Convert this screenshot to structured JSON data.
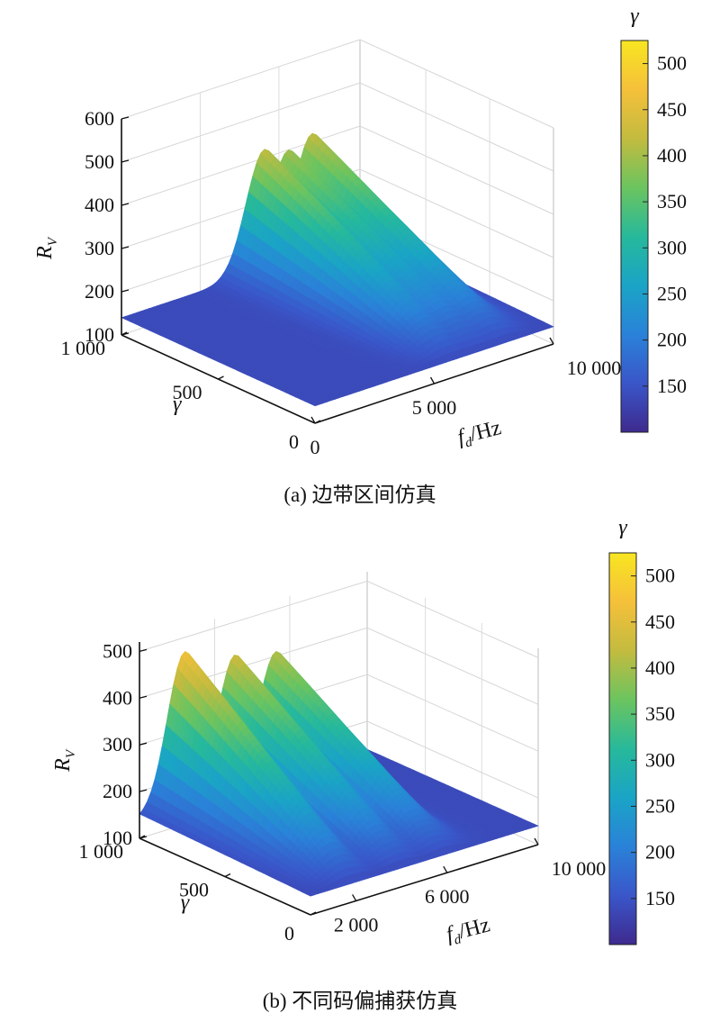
{
  "chart_data": [
    {
      "type": "surface",
      "caption": "(a) 边带区间仿真",
      "zlabel_main": "R",
      "zlabel_sub": "V",
      "ylabel": "γ",
      "xlabel_main": "f",
      "xlabel_sub": "d",
      "xlabel_unit": "/Hz",
      "zticks": [
        "100",
        "200",
        "300",
        "400",
        "500",
        "600"
      ],
      "yticks": [
        "0",
        "500",
        "1 000"
      ],
      "xticks": [
        "0",
        "5 000",
        "10 000"
      ],
      "zlim": [
        100,
        600
      ],
      "ylim": [
        0,
        1000
      ],
      "xlim": [
        0,
        10000
      ],
      "grid": true,
      "floor_value": 140,
      "peaks": [
        {
          "fd": 6000,
          "peak": 420
        },
        {
          "fd": 7000,
          "peak": 400
        },
        {
          "fd": 8000,
          "peak": 420
        }
      ],
      "colorbar": {
        "title": "γ",
        "ticks": [
          "150",
          "200",
          "250",
          "300",
          "350",
          "400",
          "450",
          "500"
        ],
        "range": [
          100,
          525
        ],
        "colors": [
          "#3e2a8e",
          "#3a56c9",
          "#2a82d8",
          "#1aa4c6",
          "#27b99b",
          "#6cc45f",
          "#c3bb3f",
          "#f5c03a",
          "#f8e621"
        ]
      }
    },
    {
      "type": "surface",
      "caption": "(b) 不同码偏捕获仿真",
      "zlabel_main": "R",
      "zlabel_sub": "V",
      "ylabel": "γ",
      "xlabel_main": "f",
      "xlabel_sub": "d",
      "xlabel_unit": "/Hz",
      "zticks": [
        "100",
        "200",
        "300",
        "400",
        "500"
      ],
      "yticks": [
        "0",
        "500",
        "1 000"
      ],
      "xticks": [
        "2 000",
        "6 000",
        "10 000"
      ],
      "zlim": [
        100,
        520
      ],
      "ylim": [
        0,
        1000
      ],
      "xlim": [
        0,
        10000
      ],
      "grid": true,
      "floor_value": 140,
      "peaks": [
        {
          "fd": 2000,
          "peak": 470
        },
        {
          "fd": 4200,
          "peak": 430
        },
        {
          "fd": 6000,
          "peak": 410
        }
      ],
      "colorbar": {
        "title": "γ",
        "ticks": [
          "150",
          "200",
          "250",
          "300",
          "350",
          "400",
          "450",
          "500"
        ],
        "range": [
          100,
          525
        ],
        "colors": [
          "#3e2a8e",
          "#3a56c9",
          "#2a82d8",
          "#1aa4c6",
          "#27b99b",
          "#6cc45f",
          "#c3bb3f",
          "#f5c03a",
          "#f8e621"
        ]
      }
    }
  ]
}
